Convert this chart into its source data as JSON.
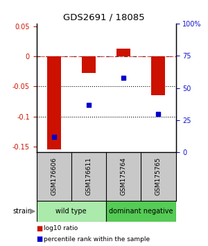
{
  "title": "GDS2691 / 18085",
  "samples": [
    "GSM176606",
    "GSM176611",
    "GSM175764",
    "GSM175765"
  ],
  "log10_ratio": [
    -0.155,
    -0.028,
    0.013,
    -0.065
  ],
  "percentile_rank": [
    12,
    37,
    58,
    30
  ],
  "groups": [
    {
      "label": "wild type",
      "color": "#aaeaaa",
      "samples": [
        0,
        1
      ]
    },
    {
      "label": "dominant negative",
      "color": "#55cc55",
      "samples": [
        2,
        3
      ]
    }
  ],
  "bar_color": "#cc1100",
  "dot_color": "#0000cc",
  "ylim_left": [
    -0.16,
    0.055
  ],
  "ylim_right": [
    0,
    100
  ],
  "yticks_left": [
    0.05,
    0,
    -0.05,
    -0.1,
    -0.15
  ],
  "yticks_right": [
    100,
    75,
    50,
    25,
    0
  ],
  "ylabel_left_color": "#cc1100",
  "ylabel_right_color": "#1111cc",
  "hline_y": 0,
  "dotted_lines": [
    -0.05,
    -0.1
  ],
  "strain_label": "strain",
  "legend_bar_label": "log10 ratio",
  "legend_dot_label": "percentile rank within the sample",
  "sample_label_bg": "#c8c8c8",
  "background_color": "#ffffff",
  "bar_width": 0.4
}
